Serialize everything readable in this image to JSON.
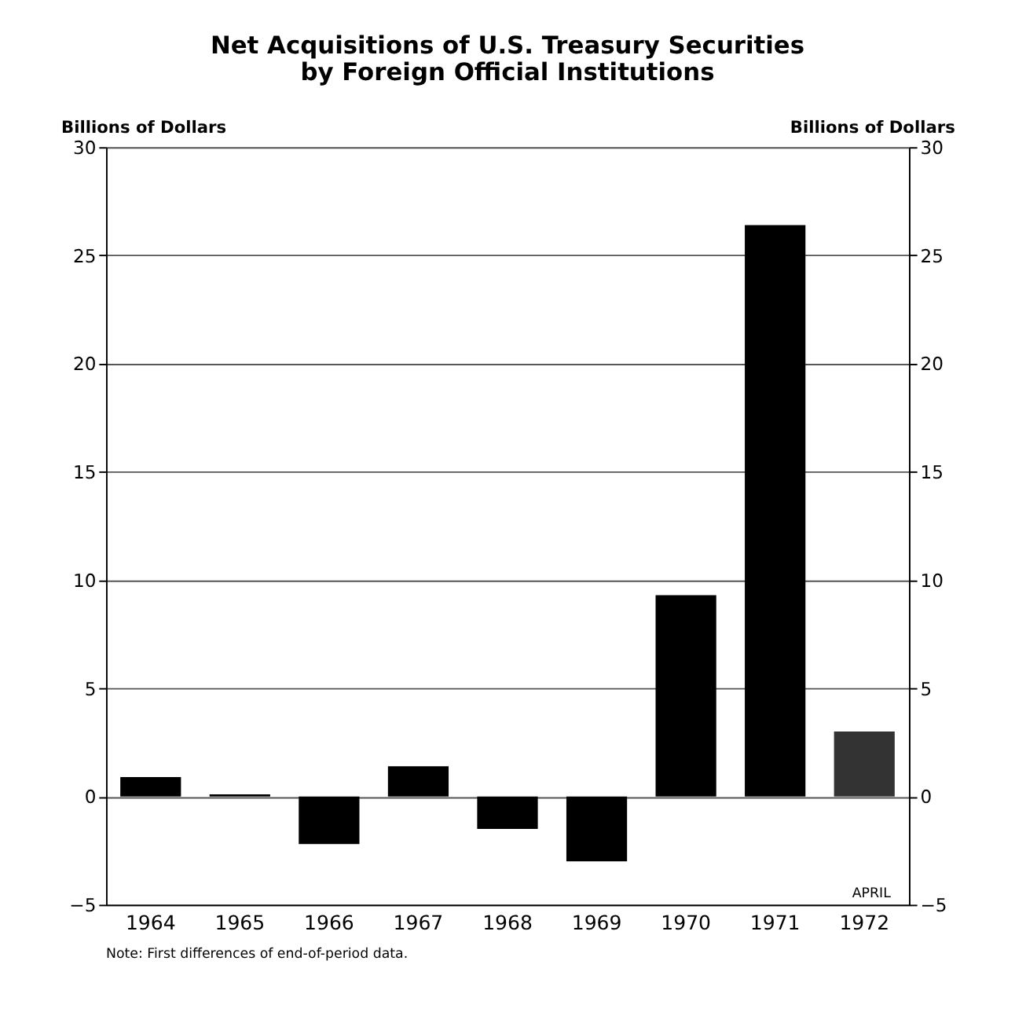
{
  "chart_data": {
    "type": "bar",
    "title": [
      "Net Acquisitions of U.S. Treasury Securities",
      "by Foreign Official Institutions"
    ],
    "ylabel": "Billions of Dollars",
    "y2label": "Billions of Dollars",
    "categories": [
      "1964",
      "1965",
      "1966",
      "1967",
      "1968",
      "1969",
      "1970",
      "1971",
      "1972"
    ],
    "values": [
      0.9,
      0.1,
      -2.2,
      1.4,
      -1.5,
      -3.0,
      9.3,
      26.4,
      3.0
    ],
    "colors": [
      "#000000",
      "#000000",
      "#000000",
      "#000000",
      "#000000",
      "#000000",
      "#000000",
      "#000000",
      "#333333"
    ],
    "ylim": [
      -5,
      30
    ],
    "yticks": [
      -5,
      0,
      5,
      10,
      15,
      20,
      25,
      30
    ],
    "y2lim": [
      -5,
      30
    ],
    "y2ticks": [
      -5,
      0,
      5,
      10,
      15,
      20,
      25,
      30
    ],
    "grid": "y",
    "annotations": [
      "APRIL",
      "Note: First differences of end-of-period data."
    ]
  }
}
